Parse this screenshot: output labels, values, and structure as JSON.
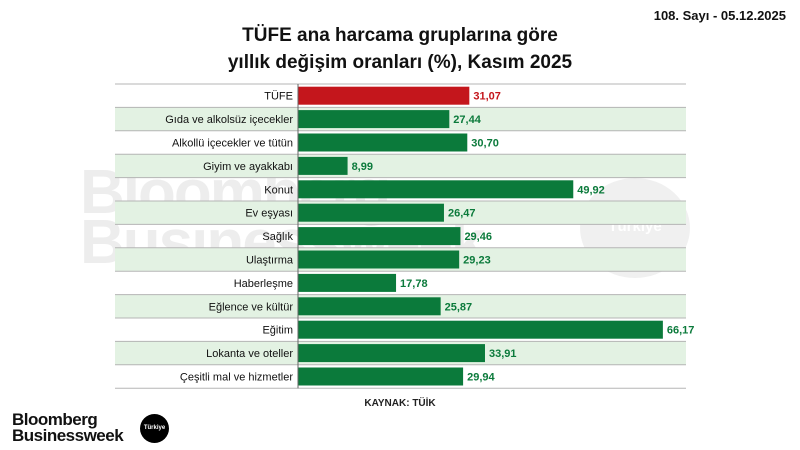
{
  "issue_line": "108. Sayı - 05.12.2025",
  "title_line1": "TÜFE ana harcama gruplarına göre",
  "title_line2": "yıllık değişim oranları (%), Kasım 2025",
  "source": "KAYNAK: TÜİK",
  "logo": {
    "line1": "Bloomberg",
    "line2": "Businessweek",
    "badge": "Türkiye"
  },
  "watermark": {
    "line1": "Bloomberg",
    "line2": "Businessweek",
    "badge": "Türkiye"
  },
  "colors": {
    "highlight": "#c4161c",
    "bar": "#0b7a3b",
    "band": "#e3f2e3",
    "grid": "#b5b5b5"
  },
  "chart_data": {
    "type": "bar",
    "orientation": "horizontal",
    "title": "TÜFE ana harcama gruplarına göre yıllık değişim oranları (%), Kasım 2025",
    "categories": [
      "TÜFE",
      "Gıda ve alkolsüz içecekler",
      "Alkollü içecekler ve tütün",
      "Giyim ve ayakkabı",
      "Konut",
      "Ev eşyası",
      "Sağlık",
      "Ulaştırma",
      "Haberleşme",
      "Eğlence ve kültür",
      "Eğitim",
      "Lokanta ve oteller",
      "Çeşitli mal ve hizmetler"
    ],
    "values": [
      31.07,
      27.44,
      30.7,
      8.99,
      49.92,
      26.47,
      29.46,
      29.23,
      17.78,
      25.87,
      66.17,
      33.91,
      29.94
    ],
    "labels": [
      "31,07",
      "27,44",
      "30,70",
      "8,99",
      "49,92",
      "26,47",
      "29,46",
      "29,23",
      "17,78",
      "25,87",
      "66,17",
      "33,91",
      "29,94"
    ],
    "highlight_index": 0,
    "xlim": [
      0,
      70
    ],
    "grid": false,
    "legend": "none"
  }
}
